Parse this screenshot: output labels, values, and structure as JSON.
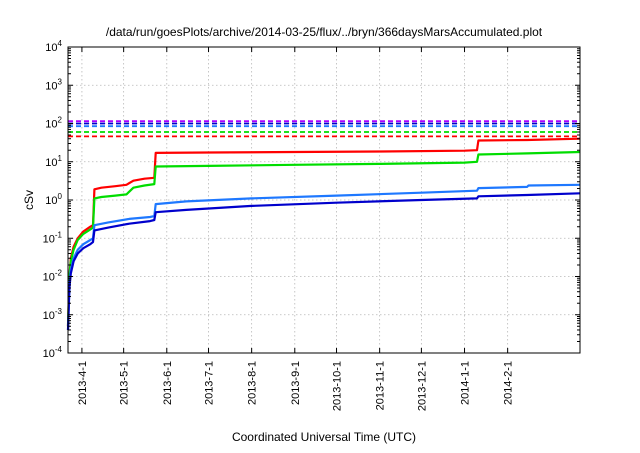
{
  "chart_data": {
    "type": "line",
    "title": "/data/run/goesPlots/archive/2014-03-25/flux/../bryn/366daysMarsAccumulated.plot",
    "xlabel": "Coordinated Universal Time (UTC)",
    "ylabel": "cSv",
    "y_scale": "log",
    "ylim": [
      0.0001,
      10000
    ],
    "xlim": [
      "2013-03-22",
      "2014-03-25"
    ],
    "grid": true,
    "x_ticks": [
      "2013-4-1",
      "2013-5-1",
      "2013-6-1",
      "2013-7-1",
      "2013-8-1",
      "2013-9-1",
      "2013-10-1",
      "2013-11-1",
      "2013-12-1",
      "2014-1-1",
      "2014-2-1"
    ],
    "y_ticks": [
      {
        "value": 0.0001,
        "base": "10",
        "exp": "-4"
      },
      {
        "value": 0.001,
        "base": "10",
        "exp": "-3"
      },
      {
        "value": 0.01,
        "base": "10",
        "exp": "-2"
      },
      {
        "value": 0.1,
        "base": "10",
        "exp": "-1"
      },
      {
        "value": 1,
        "base": "10",
        "exp": "0"
      },
      {
        "value": 10,
        "base": "10",
        "exp": "1"
      },
      {
        "value": 100,
        "base": "10",
        "exp": "2"
      },
      {
        "value": 1000,
        "base": "10",
        "exp": "3"
      },
      {
        "value": 10000,
        "base": "10",
        "exp": "4"
      }
    ],
    "series": [
      {
        "color": "#ff0000",
        "points": [
          [
            "2013-03-22",
            0.0005
          ],
          [
            "2013-03-23",
            0.01
          ],
          [
            "2013-03-24",
            0.03
          ],
          [
            "2013-03-26",
            0.06
          ],
          [
            "2013-03-29",
            0.1
          ],
          [
            "2013-04-02",
            0.15
          ],
          [
            "2013-04-07",
            0.2
          ],
          [
            "2013-04-09",
            0.22
          ],
          [
            "2013-04-10",
            1.9
          ],
          [
            "2013-04-15",
            2.1
          ],
          [
            "2013-04-25",
            2.3
          ],
          [
            "2013-05-03",
            2.5
          ],
          [
            "2013-05-08",
            3.2
          ],
          [
            "2013-05-16",
            3.6
          ],
          [
            "2013-05-23",
            3.8
          ],
          [
            "2013-05-24",
            17
          ],
          [
            "2013-07-01",
            17.5
          ],
          [
            "2013-09-01",
            18
          ],
          [
            "2013-11-01",
            18.5
          ],
          [
            "2014-01-01",
            19.5
          ],
          [
            "2014-01-10",
            20
          ],
          [
            "2014-01-11",
            36
          ],
          [
            "2014-02-15",
            37
          ],
          [
            "2014-03-25",
            40
          ]
        ]
      },
      {
        "color": "#00dd00",
        "points": [
          [
            "2013-03-22",
            0.0005
          ],
          [
            "2013-03-23",
            0.01
          ],
          [
            "2013-03-24",
            0.025
          ],
          [
            "2013-03-26",
            0.05
          ],
          [
            "2013-03-29",
            0.09
          ],
          [
            "2013-04-02",
            0.13
          ],
          [
            "2013-04-07",
            0.17
          ],
          [
            "2013-04-09",
            0.19
          ],
          [
            "2013-04-10",
            1.1
          ],
          [
            "2013-04-15",
            1.2
          ],
          [
            "2013-04-25",
            1.3
          ],
          [
            "2013-05-03",
            1.4
          ],
          [
            "2013-05-08",
            2.1
          ],
          [
            "2013-05-16",
            2.4
          ],
          [
            "2013-05-23",
            2.6
          ],
          [
            "2013-05-24",
            7.5
          ],
          [
            "2013-07-01",
            7.8
          ],
          [
            "2013-09-01",
            8.3
          ],
          [
            "2013-11-01",
            8.8
          ],
          [
            "2014-01-01",
            9.5
          ],
          [
            "2014-01-10",
            10
          ],
          [
            "2014-01-11",
            15.5
          ],
          [
            "2014-02-15",
            16.5
          ],
          [
            "2014-03-25",
            18
          ]
        ]
      },
      {
        "color": "#1e78ff",
        "points": [
          [
            "2013-03-22",
            0.0004
          ],
          [
            "2013-03-23",
            0.006
          ],
          [
            "2013-03-24",
            0.015
          ],
          [
            "2013-03-26",
            0.03
          ],
          [
            "2013-03-29",
            0.05
          ],
          [
            "2013-04-02",
            0.07
          ],
          [
            "2013-04-07",
            0.09
          ],
          [
            "2013-04-09",
            0.1
          ],
          [
            "2013-04-10",
            0.22
          ],
          [
            "2013-04-20",
            0.26
          ],
          [
            "2013-05-05",
            0.32
          ],
          [
            "2013-05-20",
            0.36
          ],
          [
            "2013-05-23",
            0.38
          ],
          [
            "2013-05-24",
            0.78
          ],
          [
            "2013-06-15",
            0.92
          ],
          [
            "2013-08-01",
            1.1
          ],
          [
            "2013-10-01",
            1.3
          ],
          [
            "2013-12-01",
            1.55
          ],
          [
            "2014-01-10",
            1.75
          ],
          [
            "2014-01-11",
            2.05
          ],
          [
            "2014-02-15",
            2.2
          ],
          [
            "2014-02-16",
            2.4
          ],
          [
            "2014-03-25",
            2.5
          ]
        ]
      },
      {
        "color": "#0000cc",
        "points": [
          [
            "2013-03-22",
            0.0004
          ],
          [
            "2013-03-23",
            0.005
          ],
          [
            "2013-03-24",
            0.012
          ],
          [
            "2013-03-26",
            0.025
          ],
          [
            "2013-03-29",
            0.04
          ],
          [
            "2013-04-02",
            0.055
          ],
          [
            "2013-04-07",
            0.07
          ],
          [
            "2013-04-09",
            0.08
          ],
          [
            "2013-04-10",
            0.16
          ],
          [
            "2013-04-20",
            0.19
          ],
          [
            "2013-05-05",
            0.24
          ],
          [
            "2013-05-20",
            0.28
          ],
          [
            "2013-05-23",
            0.3
          ],
          [
            "2013-05-24",
            0.48
          ],
          [
            "2013-06-15",
            0.55
          ],
          [
            "2013-08-01",
            0.7
          ],
          [
            "2013-10-01",
            0.85
          ],
          [
            "2013-12-01",
            1.0
          ],
          [
            "2014-01-10",
            1.1
          ],
          [
            "2014-01-11",
            1.25
          ],
          [
            "2014-02-15",
            1.35
          ],
          [
            "2014-03-25",
            1.5
          ]
        ]
      }
    ],
    "reference_lines": [
      {
        "y": 115,
        "color": "#aa00ff"
      },
      {
        "y": 100,
        "color": "#0000cc"
      },
      {
        "y": 85,
        "color": "#1e78ff"
      },
      {
        "y": 60,
        "color": "#00dd00"
      },
      {
        "y": 46,
        "color": "#ff0000"
      }
    ]
  }
}
